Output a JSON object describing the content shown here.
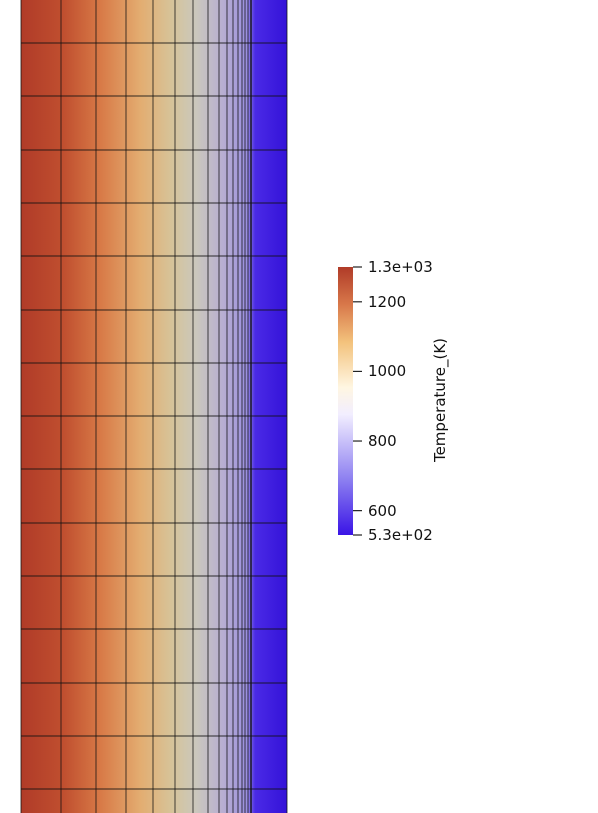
{
  "colorbar": {
    "title": "Temperature_(K)",
    "range_min": 530,
    "range_max": 1300,
    "ticks": [
      {
        "value": 1300,
        "label": "1.3e+03"
      },
      {
        "value": 1200,
        "label": "1200"
      },
      {
        "value": 1000,
        "label": "1000"
      },
      {
        "value": 800,
        "label": "800"
      },
      {
        "value": 600,
        "label": "600"
      },
      {
        "value": 530,
        "label": "5.3e+02"
      }
    ],
    "colormap": [
      "#3a14e6",
      "#8a7cf0",
      "#f2eeff",
      "#fff6e2",
      "#f3c27c",
      "#d8784a",
      "#b03b28"
    ]
  },
  "colors": {
    "hot": "#b03b28",
    "mid": "#cbc8bd",
    "cold": "#3a14e6",
    "mesh_line": "#111111"
  }
}
